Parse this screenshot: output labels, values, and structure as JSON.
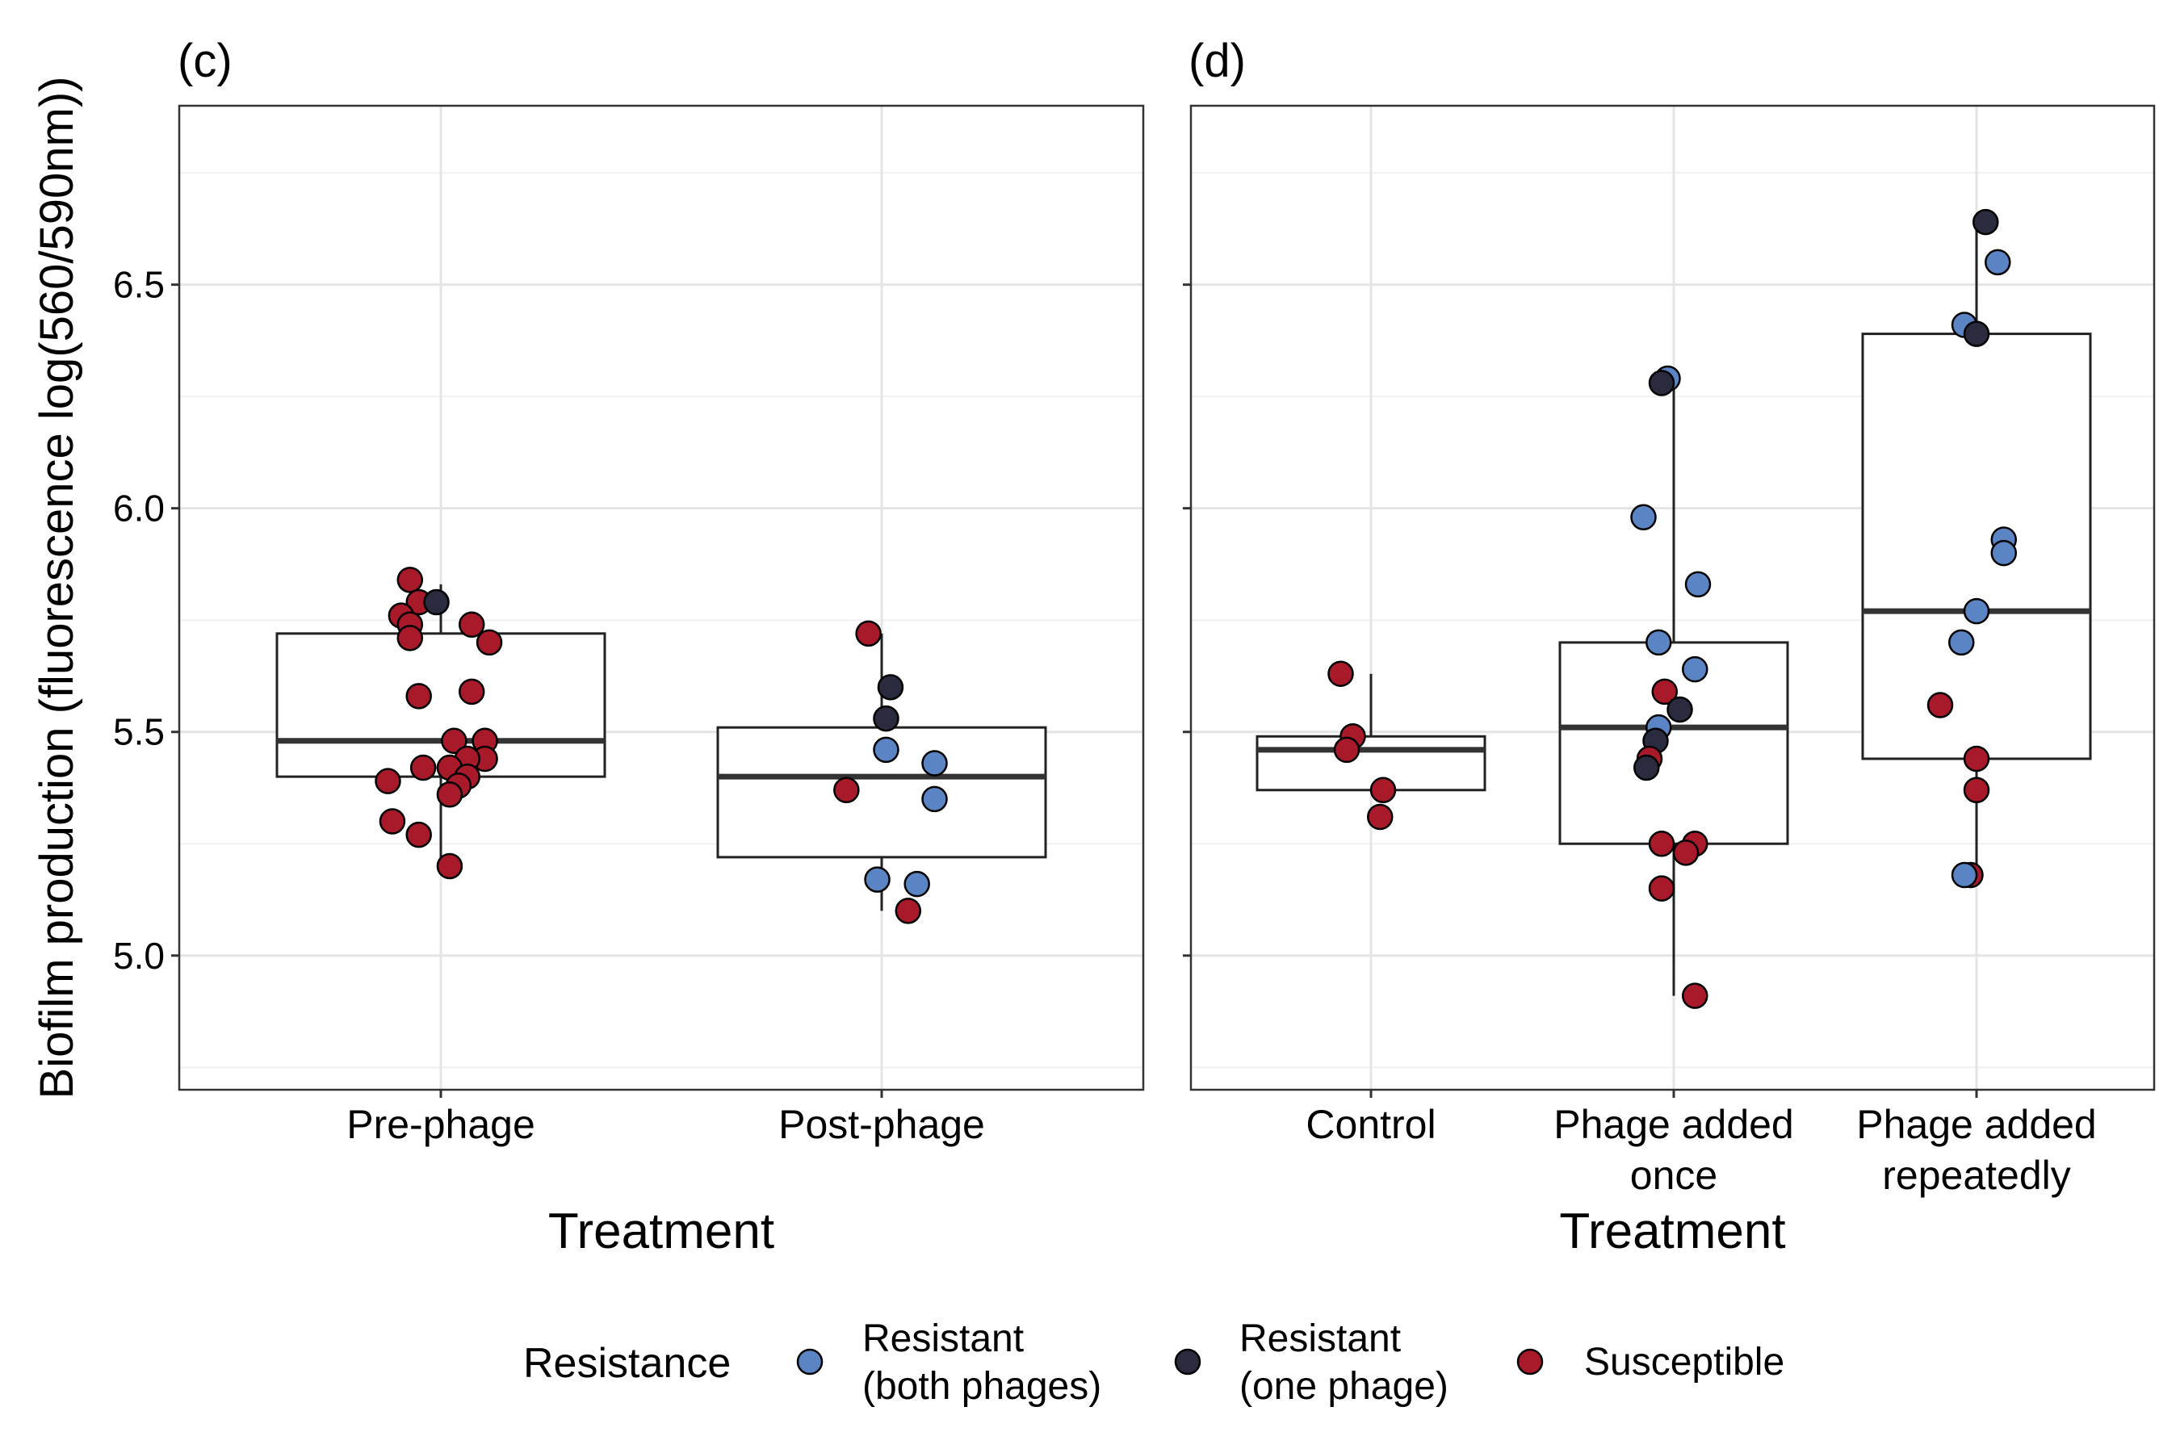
{
  "y_axis_label": "Biofilm production (fluorescence log(560/590nm))",
  "legend": {
    "title": "Resistance",
    "entries": [
      {
        "key": "resistant_both",
        "line1": "Resistant",
        "line2": "(both phages)",
        "color": "#5b84c4"
      },
      {
        "key": "resistant_one",
        "line1": "Resistant",
        "line2": "(one phage)",
        "color": "#2b2b40"
      },
      {
        "key": "susceptible",
        "line1": "Susceptible",
        "line2": "",
        "color": "#a8192a"
      }
    ]
  },
  "chart_data": [
    {
      "type": "box",
      "panel_label": "(c)",
      "xlabel": "Treatment",
      "ylabel": "Biofilm production (fluorescence log(560/590nm))",
      "ylim": [
        4.7,
        6.9
      ],
      "y_ticks": [
        5.0,
        5.5,
        6.0,
        6.5
      ],
      "y_tick_labels": [
        "5.0",
        "5.5",
        "6.0",
        "6.5"
      ],
      "grid": true,
      "categories": [
        {
          "lines": [
            "Pre-phage"
          ],
          "box": {
            "q1": 5.4,
            "median": 5.48,
            "q3": 5.72,
            "whisker_low": 5.2,
            "whisker_high": 5.83
          },
          "points": [
            {
              "x": -0.07,
              "y": 5.84,
              "group": "susceptible"
            },
            {
              "x": -0.05,
              "y": 5.79,
              "group": "susceptible"
            },
            {
              "x": -0.01,
              "y": 5.79,
              "group": "resistant_one"
            },
            {
              "x": -0.09,
              "y": 5.76,
              "group": "susceptible"
            },
            {
              "x": -0.07,
              "y": 5.74,
              "group": "susceptible"
            },
            {
              "x": 0.07,
              "y": 5.74,
              "group": "susceptible"
            },
            {
              "x": -0.07,
              "y": 5.71,
              "group": "susceptible"
            },
            {
              "x": 0.11,
              "y": 5.7,
              "group": "susceptible"
            },
            {
              "x": -0.05,
              "y": 5.58,
              "group": "susceptible"
            },
            {
              "x": 0.07,
              "y": 5.59,
              "group": "susceptible"
            },
            {
              "x": 0.03,
              "y": 5.48,
              "group": "susceptible"
            },
            {
              "x": 0.1,
              "y": 5.48,
              "group": "susceptible"
            },
            {
              "x": 0.1,
              "y": 5.44,
              "group": "susceptible"
            },
            {
              "x": 0.06,
              "y": 5.44,
              "group": "susceptible"
            },
            {
              "x": -0.04,
              "y": 5.42,
              "group": "susceptible"
            },
            {
              "x": 0.02,
              "y": 5.42,
              "group": "susceptible"
            },
            {
              "x": 0.06,
              "y": 5.4,
              "group": "susceptible"
            },
            {
              "x": -0.12,
              "y": 5.39,
              "group": "susceptible"
            },
            {
              "x": 0.04,
              "y": 5.38,
              "group": "susceptible"
            },
            {
              "x": 0.02,
              "y": 5.36,
              "group": "susceptible"
            },
            {
              "x": -0.11,
              "y": 5.3,
              "group": "susceptible"
            },
            {
              "x": -0.05,
              "y": 5.27,
              "group": "susceptible"
            },
            {
              "x": 0.02,
              "y": 5.2,
              "group": "susceptible"
            }
          ]
        },
        {
          "lines": [
            "Post-phage"
          ],
          "box": {
            "q1": 5.22,
            "median": 5.4,
            "q3": 5.51,
            "whisker_low": 5.1,
            "whisker_high": 5.72
          },
          "points": [
            {
              "x": -0.03,
              "y": 5.72,
              "group": "susceptible"
            },
            {
              "x": 0.02,
              "y": 5.6,
              "group": "resistant_one"
            },
            {
              "x": 0.01,
              "y": 5.53,
              "group": "resistant_one"
            },
            {
              "x": 0.01,
              "y": 5.46,
              "group": "resistant_both"
            },
            {
              "x": 0.12,
              "y": 5.43,
              "group": "resistant_both"
            },
            {
              "x": -0.08,
              "y": 5.37,
              "group": "susceptible"
            },
            {
              "x": 0.12,
              "y": 5.35,
              "group": "resistant_both"
            },
            {
              "x": -0.01,
              "y": 5.17,
              "group": "resistant_both"
            },
            {
              "x": 0.08,
              "y": 5.16,
              "group": "resistant_both"
            },
            {
              "x": 0.06,
              "y": 5.1,
              "group": "susceptible"
            }
          ]
        }
      ]
    },
    {
      "type": "box",
      "panel_label": "(d)",
      "xlabel": "Treatment",
      "ylim": [
        4.7,
        6.9
      ],
      "y_ticks": [
        5.0,
        5.5,
        6.0,
        6.5
      ],
      "grid": true,
      "categories": [
        {
          "lines": [
            "Control"
          ],
          "box": {
            "q1": 5.37,
            "median": 5.46,
            "q3": 5.49,
            "whisker_low": 5.37,
            "whisker_high": 5.63
          },
          "points": [
            {
              "x": -0.1,
              "y": 5.63,
              "group": "susceptible"
            },
            {
              "x": -0.06,
              "y": 5.49,
              "group": "susceptible"
            },
            {
              "x": -0.08,
              "y": 5.46,
              "group": "susceptible"
            },
            {
              "x": 0.04,
              "y": 5.37,
              "group": "susceptible"
            },
            {
              "x": 0.03,
              "y": 5.31,
              "group": "susceptible"
            }
          ]
        },
        {
          "lines": [
            "Phage added",
            "once"
          ],
          "box": {
            "q1": 5.25,
            "median": 5.51,
            "q3": 5.7,
            "whisker_low": 4.91,
            "whisker_high": 6.29
          },
          "points": [
            {
              "x": -0.02,
              "y": 6.29,
              "group": "resistant_both"
            },
            {
              "x": -0.04,
              "y": 6.28,
              "group": "resistant_one"
            },
            {
              "x": -0.1,
              "y": 5.98,
              "group": "resistant_both"
            },
            {
              "x": 0.08,
              "y": 5.83,
              "group": "resistant_both"
            },
            {
              "x": -0.05,
              "y": 5.7,
              "group": "resistant_both"
            },
            {
              "x": 0.07,
              "y": 5.64,
              "group": "resistant_both"
            },
            {
              "x": -0.03,
              "y": 5.59,
              "group": "susceptible"
            },
            {
              "x": 0.02,
              "y": 5.55,
              "group": "resistant_one"
            },
            {
              "x": -0.05,
              "y": 5.51,
              "group": "resistant_both"
            },
            {
              "x": -0.06,
              "y": 5.48,
              "group": "resistant_one"
            },
            {
              "x": -0.08,
              "y": 5.44,
              "group": "susceptible"
            },
            {
              "x": -0.09,
              "y": 5.42,
              "group": "resistant_one"
            },
            {
              "x": -0.04,
              "y": 5.25,
              "group": "susceptible"
            },
            {
              "x": 0.07,
              "y": 5.25,
              "group": "susceptible"
            },
            {
              "x": 0.04,
              "y": 5.23,
              "group": "susceptible"
            },
            {
              "x": -0.04,
              "y": 5.15,
              "group": "susceptible"
            },
            {
              "x": 0.07,
              "y": 4.91,
              "group": "susceptible"
            }
          ]
        },
        {
          "lines": [
            "Phage added",
            "repeatedly"
          ],
          "box": {
            "q1": 5.44,
            "median": 5.77,
            "q3": 6.39,
            "whisker_low": 5.17,
            "whisker_high": 6.64
          },
          "points": [
            {
              "x": 0.03,
              "y": 6.64,
              "group": "resistant_one"
            },
            {
              "x": 0.07,
              "y": 6.55,
              "group": "resistant_both"
            },
            {
              "x": -0.04,
              "y": 6.41,
              "group": "resistant_both"
            },
            {
              "x": 0.0,
              "y": 6.39,
              "group": "resistant_one"
            },
            {
              "x": 0.09,
              "y": 5.93,
              "group": "resistant_both"
            },
            {
              "x": 0.09,
              "y": 5.9,
              "group": "resistant_both"
            },
            {
              "x": 0.0,
              "y": 5.77,
              "group": "resistant_both"
            },
            {
              "x": -0.05,
              "y": 5.7,
              "group": "resistant_both"
            },
            {
              "x": -0.12,
              "y": 5.56,
              "group": "susceptible"
            },
            {
              "x": 0.0,
              "y": 5.44,
              "group": "susceptible"
            },
            {
              "x": 0.0,
              "y": 5.37,
              "group": "susceptible"
            },
            {
              "x": -0.02,
              "y": 5.18,
              "group": "susceptible"
            },
            {
              "x": -0.04,
              "y": 5.18,
              "group": "resistant_both"
            }
          ]
        }
      ]
    }
  ]
}
